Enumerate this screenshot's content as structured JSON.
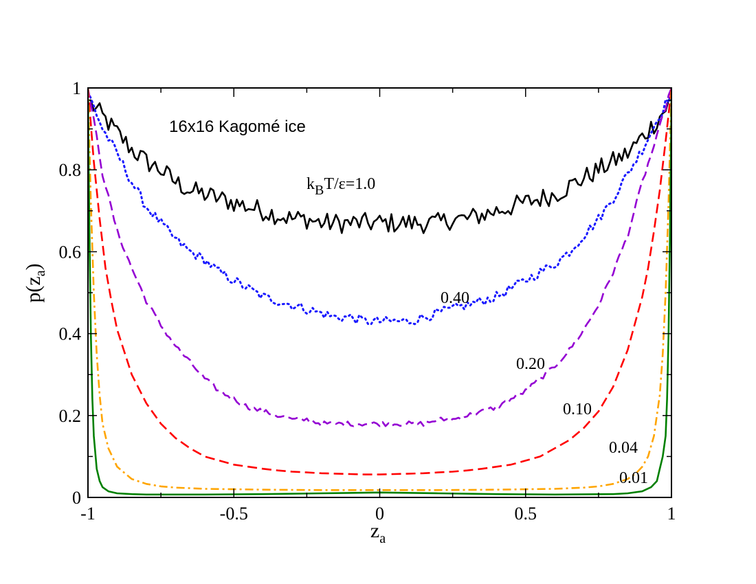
{
  "chart_data": {
    "type": "line",
    "title": "",
    "annotation": "16x16 Kagomé ice",
    "xlabel": {
      "base": "z",
      "sub": "a"
    },
    "ylabel": {
      "base": "p(z",
      "sub": "a",
      "close": ")"
    },
    "xlim": [
      -1,
      1
    ],
    "ylim": [
      0,
      1
    ],
    "xticks": [
      -1,
      -0.5,
      0,
      0.5,
      1
    ],
    "xtick_labels": [
      "-1",
      "-0.5",
      "0",
      "0.5",
      "1"
    ],
    "yticks": [
      0,
      0.2,
      0.4,
      0.6,
      0.8,
      1
    ],
    "ytick_labels": [
      "0",
      "0.2",
      "0.4",
      "0.6",
      "0.8",
      "1"
    ],
    "grid": false,
    "legend": "none",
    "series": [
      {
        "label": {
          "base": "k",
          "sub": "B",
          "rest": "T/ε=1.0"
        },
        "color": "#000000",
        "style": "solid",
        "noise": 0.025,
        "x": [
          -1.0,
          -0.95,
          -0.9,
          -0.85,
          -0.8,
          -0.75,
          -0.7,
          -0.65,
          -0.6,
          -0.55,
          -0.5,
          -0.45,
          -0.4,
          -0.35,
          -0.3,
          -0.25,
          -0.2,
          -0.15,
          -0.1,
          -0.05,
          0.0,
          0.05,
          0.1,
          0.15,
          0.2,
          0.25,
          0.3,
          0.35,
          0.4,
          0.45,
          0.5,
          0.55,
          0.6,
          0.65,
          0.7,
          0.75,
          0.8,
          0.85,
          0.9,
          0.95,
          1.0
        ],
        "y": [
          0.97,
          0.93,
          0.89,
          0.85,
          0.82,
          0.8,
          0.77,
          0.75,
          0.74,
          0.73,
          0.72,
          0.71,
          0.7,
          0.69,
          0.68,
          0.68,
          0.67,
          0.67,
          0.67,
          0.67,
          0.67,
          0.67,
          0.67,
          0.67,
          0.67,
          0.68,
          0.68,
          0.69,
          0.7,
          0.71,
          0.72,
          0.73,
          0.74,
          0.76,
          0.78,
          0.8,
          0.82,
          0.84,
          0.88,
          0.92,
          0.97
        ]
      },
      {
        "label": {
          "base": "0.40"
        },
        "color": "#1a1aff",
        "style": "dotted",
        "noise": 0.012,
        "x": [
          -1.0,
          -0.95,
          -0.9,
          -0.85,
          -0.8,
          -0.75,
          -0.7,
          -0.65,
          -0.6,
          -0.55,
          -0.5,
          -0.45,
          -0.4,
          -0.35,
          -0.3,
          -0.25,
          -0.2,
          -0.15,
          -0.1,
          -0.05,
          0.0,
          0.05,
          0.1,
          0.15,
          0.2,
          0.25,
          0.3,
          0.35,
          0.4,
          0.45,
          0.5,
          0.55,
          0.6,
          0.65,
          0.7,
          0.75,
          0.8,
          0.85,
          0.9,
          0.95,
          1.0
        ],
        "y": [
          0.99,
          0.9,
          0.84,
          0.77,
          0.71,
          0.67,
          0.63,
          0.6,
          0.58,
          0.55,
          0.53,
          0.51,
          0.49,
          0.48,
          0.47,
          0.46,
          0.45,
          0.44,
          0.44,
          0.43,
          0.43,
          0.43,
          0.43,
          0.44,
          0.45,
          0.46,
          0.47,
          0.48,
          0.49,
          0.51,
          0.53,
          0.55,
          0.57,
          0.6,
          0.64,
          0.68,
          0.73,
          0.79,
          0.85,
          0.92,
          0.99
        ]
      },
      {
        "label": {
          "base": "0.20"
        },
        "color": "#9400d3",
        "style": "dashed",
        "noise": 0.006,
        "x": [
          -1.0,
          -0.97,
          -0.95,
          -0.9,
          -0.85,
          -0.8,
          -0.75,
          -0.7,
          -0.65,
          -0.6,
          -0.55,
          -0.5,
          -0.45,
          -0.4,
          -0.35,
          -0.3,
          -0.25,
          -0.2,
          -0.15,
          -0.1,
          -0.05,
          0.0,
          0.05,
          0.1,
          0.15,
          0.2,
          0.25,
          0.3,
          0.35,
          0.4,
          0.45,
          0.5,
          0.55,
          0.6,
          0.65,
          0.7,
          0.75,
          0.8,
          0.85,
          0.9,
          0.95,
          0.97,
          1.0
        ],
        "y": [
          1.0,
          0.88,
          0.79,
          0.65,
          0.56,
          0.48,
          0.42,
          0.37,
          0.33,
          0.29,
          0.26,
          0.24,
          0.22,
          0.21,
          0.2,
          0.19,
          0.19,
          0.18,
          0.18,
          0.18,
          0.18,
          0.18,
          0.18,
          0.18,
          0.18,
          0.19,
          0.19,
          0.2,
          0.21,
          0.22,
          0.24,
          0.26,
          0.29,
          0.32,
          0.36,
          0.41,
          0.47,
          0.55,
          0.64,
          0.77,
          0.88,
          0.93,
          1.0
        ]
      },
      {
        "label": {
          "base": "0.10"
        },
        "color": "#ff0000",
        "style": "dashed",
        "noise": 0.0,
        "x": [
          -1.0,
          -0.98,
          -0.96,
          -0.94,
          -0.92,
          -0.9,
          -0.85,
          -0.8,
          -0.75,
          -0.7,
          -0.65,
          -0.6,
          -0.55,
          -0.5,
          -0.45,
          -0.4,
          -0.35,
          -0.3,
          -0.25,
          -0.2,
          -0.15,
          -0.1,
          -0.05,
          0.0,
          0.05,
          0.1,
          0.15,
          0.2,
          0.25,
          0.3,
          0.35,
          0.4,
          0.45,
          0.5,
          0.55,
          0.6,
          0.65,
          0.7,
          0.75,
          0.8,
          0.85,
          0.9,
          0.92,
          0.94,
          0.96,
          0.98,
          1.0
        ],
        "y": [
          1.0,
          0.82,
          0.68,
          0.56,
          0.48,
          0.41,
          0.3,
          0.23,
          0.18,
          0.145,
          0.12,
          0.1,
          0.09,
          0.08,
          0.075,
          0.07,
          0.066,
          0.063,
          0.061,
          0.059,
          0.058,
          0.057,
          0.056,
          0.056,
          0.057,
          0.058,
          0.059,
          0.061,
          0.063,
          0.066,
          0.07,
          0.075,
          0.08,
          0.09,
          0.1,
          0.12,
          0.14,
          0.17,
          0.21,
          0.27,
          0.36,
          0.49,
          0.56,
          0.65,
          0.75,
          0.87,
          1.0
        ]
      },
      {
        "label": {
          "base": "0.04"
        },
        "color": "#ffa500",
        "style": "dashdot",
        "noise": 0.0,
        "x": [
          -1.0,
          -0.99,
          -0.98,
          -0.97,
          -0.96,
          -0.95,
          -0.93,
          -0.9,
          -0.85,
          -0.8,
          -0.75,
          -0.7,
          -0.6,
          -0.5,
          -0.4,
          -0.2,
          0.0,
          0.2,
          0.4,
          0.5,
          0.6,
          0.7,
          0.75,
          0.8,
          0.85,
          0.88,
          0.9,
          0.92,
          0.94,
          0.96,
          0.97,
          0.98,
          0.99,
          1.0
        ],
        "y": [
          1.0,
          0.72,
          0.5,
          0.35,
          0.25,
          0.18,
          0.12,
          0.075,
          0.045,
          0.033,
          0.027,
          0.024,
          0.021,
          0.02,
          0.019,
          0.018,
          0.018,
          0.018,
          0.019,
          0.02,
          0.021,
          0.024,
          0.027,
          0.033,
          0.045,
          0.06,
          0.075,
          0.1,
          0.15,
          0.25,
          0.35,
          0.5,
          0.72,
          1.0
        ]
      },
      {
        "label": {
          "base": "0.01"
        },
        "color": "#008000",
        "style": "solid",
        "noise": 0.0,
        "x": [
          -1.0,
          -0.995,
          -0.99,
          -0.985,
          -0.98,
          -0.97,
          -0.96,
          -0.95,
          -0.93,
          -0.9,
          -0.85,
          -0.8,
          -0.6,
          -0.4,
          -0.2,
          0.0,
          0.2,
          0.4,
          0.6,
          0.8,
          0.85,
          0.9,
          0.93,
          0.95,
          0.96,
          0.97,
          0.98,
          0.985,
          0.99,
          0.995,
          1.0
        ],
        "y": [
          0.97,
          0.65,
          0.4,
          0.24,
          0.15,
          0.07,
          0.04,
          0.025,
          0.015,
          0.01,
          0.008,
          0.007,
          0.007,
          0.008,
          0.01,
          0.012,
          0.01,
          0.008,
          0.007,
          0.008,
          0.01,
          0.015,
          0.025,
          0.04,
          0.07,
          0.1,
          0.15,
          0.24,
          0.4,
          0.65,
          0.97
        ]
      }
    ]
  }
}
